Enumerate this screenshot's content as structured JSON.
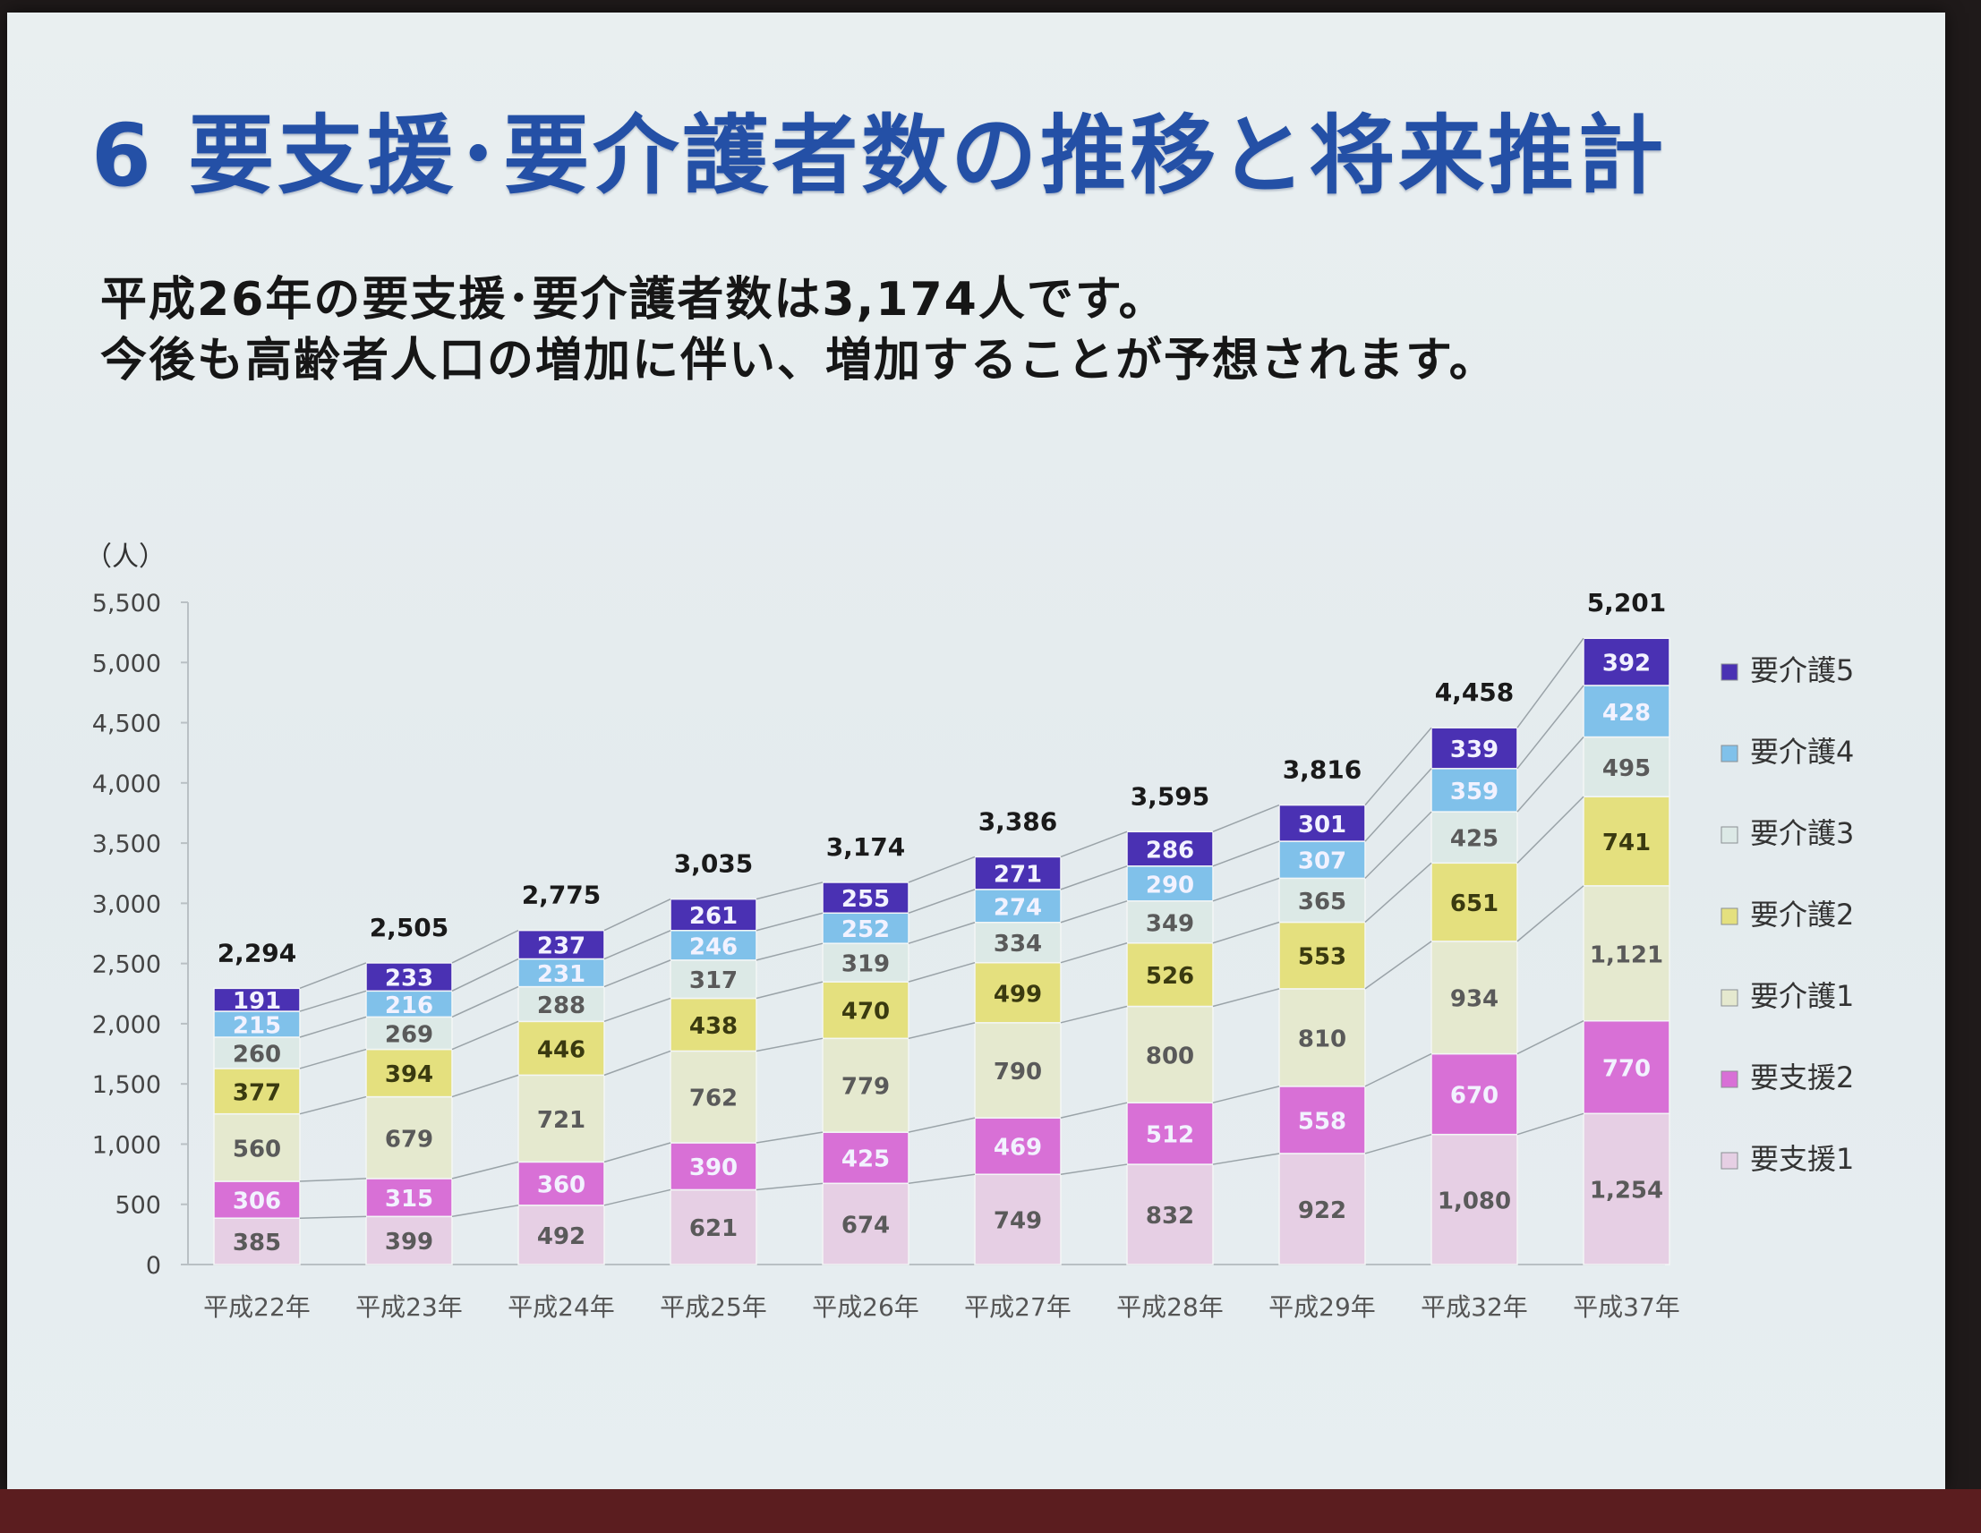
{
  "slide": {
    "title": "6 要支援･要介護者数の推移と将来推計",
    "subtitle_line1": "平成26年の要支援･要介護者数は3,174人です。",
    "subtitle_line2": "今後も高齢者人口の増加に伴い、増加することが予想されます。"
  },
  "chart_data": {
    "type": "bar",
    "stacked": true,
    "unit_label": "（人）",
    "categories": [
      "平成22年",
      "平成23年",
      "平成24年",
      "平成25年",
      "平成26年",
      "平成27年",
      "平成28年",
      "平成29年",
      "平成32年",
      "平成37年"
    ],
    "series": [
      {
        "name": "要支援1",
        "color": "#e6cfe4",
        "values": [
          385,
          399,
          492,
          621,
          674,
          749,
          832,
          922,
          1080,
          1254
        ]
      },
      {
        "name": "要支援2",
        "color": "#d870d6",
        "values": [
          306,
          315,
          360,
          390,
          425,
          469,
          512,
          558,
          670,
          770
        ]
      },
      {
        "name": "要介護1",
        "color": "#e5e9cf",
        "values": [
          560,
          679,
          721,
          762,
          779,
          790,
          800,
          810,
          934,
          1121
        ]
      },
      {
        "name": "要介護2",
        "color": "#e4e07e",
        "values": [
          377,
          394,
          446,
          438,
          470,
          499,
          526,
          553,
          651,
          741
        ]
      },
      {
        "name": "要介護3",
        "color": "#dce9e6",
        "values": [
          260,
          269,
          288,
          317,
          319,
          334,
          349,
          365,
          425,
          495
        ]
      },
      {
        "name": "要介護4",
        "color": "#80c1ea",
        "values": [
          215,
          216,
          231,
          246,
          252,
          274,
          290,
          307,
          359,
          428
        ]
      },
      {
        "name": "要介護5",
        "color": "#4a31b3",
        "values": [
          191,
          233,
          237,
          261,
          255,
          271,
          286,
          301,
          339,
          392
        ]
      }
    ],
    "totals": [
      "2,294",
      "2,505",
      "2,775",
      "3,035",
      "3,174",
      "3,386",
      "3,595",
      "3,816",
      "4,458",
      "5,201"
    ],
    "yticks": [
      0,
      500,
      1000,
      1500,
      2000,
      2500,
      3000,
      3500,
      4000,
      4500,
      5000,
      5500
    ],
    "ylim": [
      0,
      5500
    ],
    "legend_position": "right",
    "legend_order": [
      "要介護5",
      "要介護4",
      "要介護3",
      "要介護2",
      "要介護1",
      "要支援2",
      "要支援1"
    ]
  }
}
